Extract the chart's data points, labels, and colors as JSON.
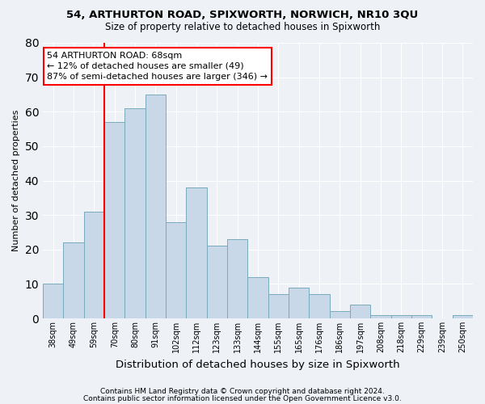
{
  "title1": "54, ARTHURTON ROAD, SPIXWORTH, NORWICH, NR10 3QU",
  "title2": "Size of property relative to detached houses in Spixworth",
  "xlabel": "Distribution of detached houses by size in Spixworth",
  "ylabel": "Number of detached properties",
  "bin_labels": [
    "38sqm",
    "49sqm",
    "59sqm",
    "70sqm",
    "80sqm",
    "91sqm",
    "102sqm",
    "112sqm",
    "123sqm",
    "133sqm",
    "144sqm",
    "155sqm",
    "165sqm",
    "176sqm",
    "186sqm",
    "197sqm",
    "208sqm",
    "218sqm",
    "229sqm",
    "239sqm",
    "250sqm"
  ],
  "bar_values": [
    10,
    22,
    31,
    57,
    61,
    65,
    28,
    38,
    21,
    23,
    12,
    7,
    9,
    7,
    2,
    4,
    1,
    1,
    1,
    0,
    1
  ],
  "bar_color": "#c8d8e8",
  "bar_edge_color": "#7aaabb",
  "ref_line_x": 2.5,
  "annotation_text": "54 ARTHURTON ROAD: 68sqm\n← 12% of detached houses are smaller (49)\n87% of semi-detached houses are larger (346) →",
  "annotation_box_color": "white",
  "annotation_box_edge": "red",
  "footer1": "Contains HM Land Registry data © Crown copyright and database right 2024.",
  "footer2": "Contains public sector information licensed under the Open Government Licence v3.0.",
  "bg_color": "#eef2f7",
  "grid_color": "white",
  "ylim": [
    0,
    80
  ],
  "yticks": [
    0,
    10,
    20,
    30,
    40,
    50,
    60,
    70,
    80
  ]
}
